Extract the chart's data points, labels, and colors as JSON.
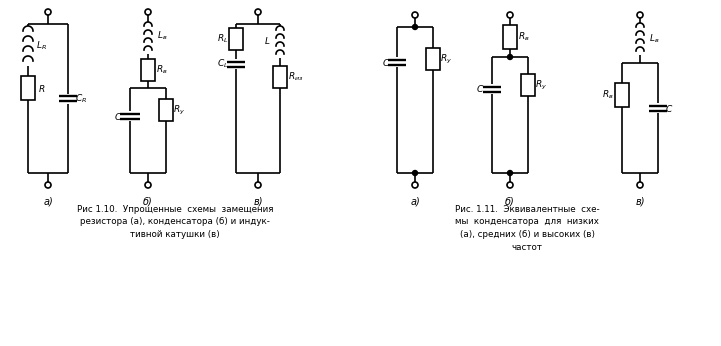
{
  "fig_width": 7.21,
  "fig_height": 3.46,
  "bg_color": "#ffffff",
  "line_color": "#000000",
  "line_width": 1.2,
  "caption1_lines": [
    "Рис 1.10.  Упрощенные  схемы  замещения",
    "резистора (а), конденсатора (б) и индук-",
    "тивной катушки (в)"
  ],
  "caption2_lines": [
    "Рис. 1.11.  Эквивалентные  схе-",
    "мы  конденсатора  для  низких",
    "(а), средних (б) и высоких (в)",
    "частот"
  ]
}
